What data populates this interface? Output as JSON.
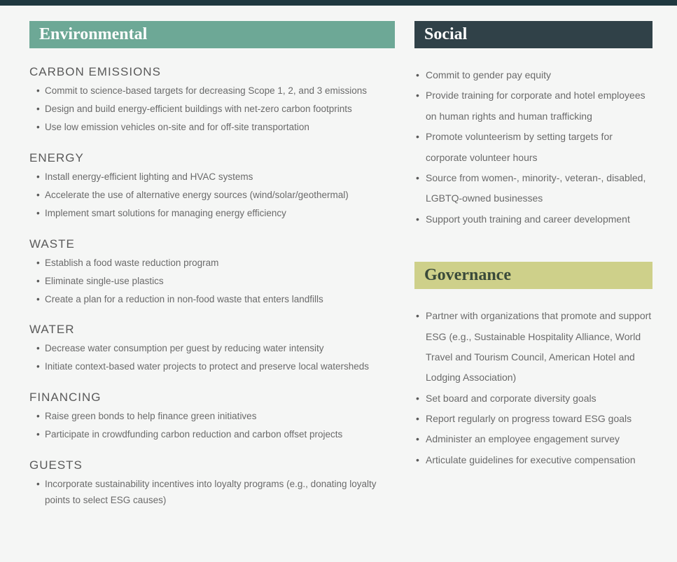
{
  "colors": {
    "page_bg": "#f5f6f5",
    "top_bar": "#1f3840",
    "environmental_header_bg": "#6da896",
    "environmental_header_text": "#ffffff",
    "social_header_bg": "#304148",
    "social_header_text": "#ffffff",
    "governance_header_bg": "#ced08a",
    "governance_header_text": "#3a4a3a",
    "subsection_title": "#5a5a5a",
    "body_text": "#6a6a6a"
  },
  "typography": {
    "banner_font": "Georgia, serif",
    "banner_size_pt": 24,
    "subsection_title_size_pt": 17,
    "body_size_pt": 13.5
  },
  "environmental": {
    "title": "Environmental",
    "sections": [
      {
        "heading": "CARBON EMISSIONS",
        "items": [
          "Commit to science-based targets for decreasing Scope 1, 2, and 3 emissions",
          "Design and build energy-efficient buildings with net-zero carbon footprints",
          "Use low emission vehicles on-site and for off-site transportation"
        ]
      },
      {
        "heading": "ENERGY",
        "items": [
          "Install energy-efficient lighting and HVAC systems",
          "Accelerate the use of alternative energy sources (wind/solar/geothermal)",
          "Implement smart solutions for managing energy efficiency"
        ]
      },
      {
        "heading": "WASTE",
        "items": [
          "Establish a food waste reduction program",
          "Eliminate single-use plastics",
          "Create a plan for a reduction in non-food waste that enters landfills"
        ]
      },
      {
        "heading": "WATER",
        "items": [
          "Decrease water consumption per guest by reducing water intensity",
          "Initiate context-based water projects to protect and preserve local watersheds"
        ]
      },
      {
        "heading": "FINANCING",
        "items": [
          "Raise green bonds to help finance green initiatives",
          "Participate in crowdfunding carbon reduction and carbon offset projects"
        ]
      },
      {
        "heading": "GUESTS",
        "items": [
          "Incorporate sustainability incentives into loyalty programs (e.g., donating loyalty points to select ESG causes)"
        ]
      }
    ]
  },
  "social": {
    "title": "Social",
    "items": [
      "Commit to gender pay equity",
      "Provide training for corporate and hotel employees on human rights and human trafficking",
      "Promote volunteerism by setting targets for corporate volunteer hours",
      "Source from women-, minority-, veteran-, disabled, LGBTQ-owned businesses",
      "Support youth training and career development"
    ]
  },
  "governance": {
    "title": "Governance",
    "items": [
      "Partner with organizations that promote and support ESG (e.g., Sustainable Hospitality Alliance, World Travel and Tourism Council, American Hotel and Lodging Association)",
      "Set board and corporate diversity goals",
      "Report regularly on progress toward ESG goals",
      "Administer an employee engagement survey",
      "Articulate guidelines for executive compensation"
    ]
  }
}
